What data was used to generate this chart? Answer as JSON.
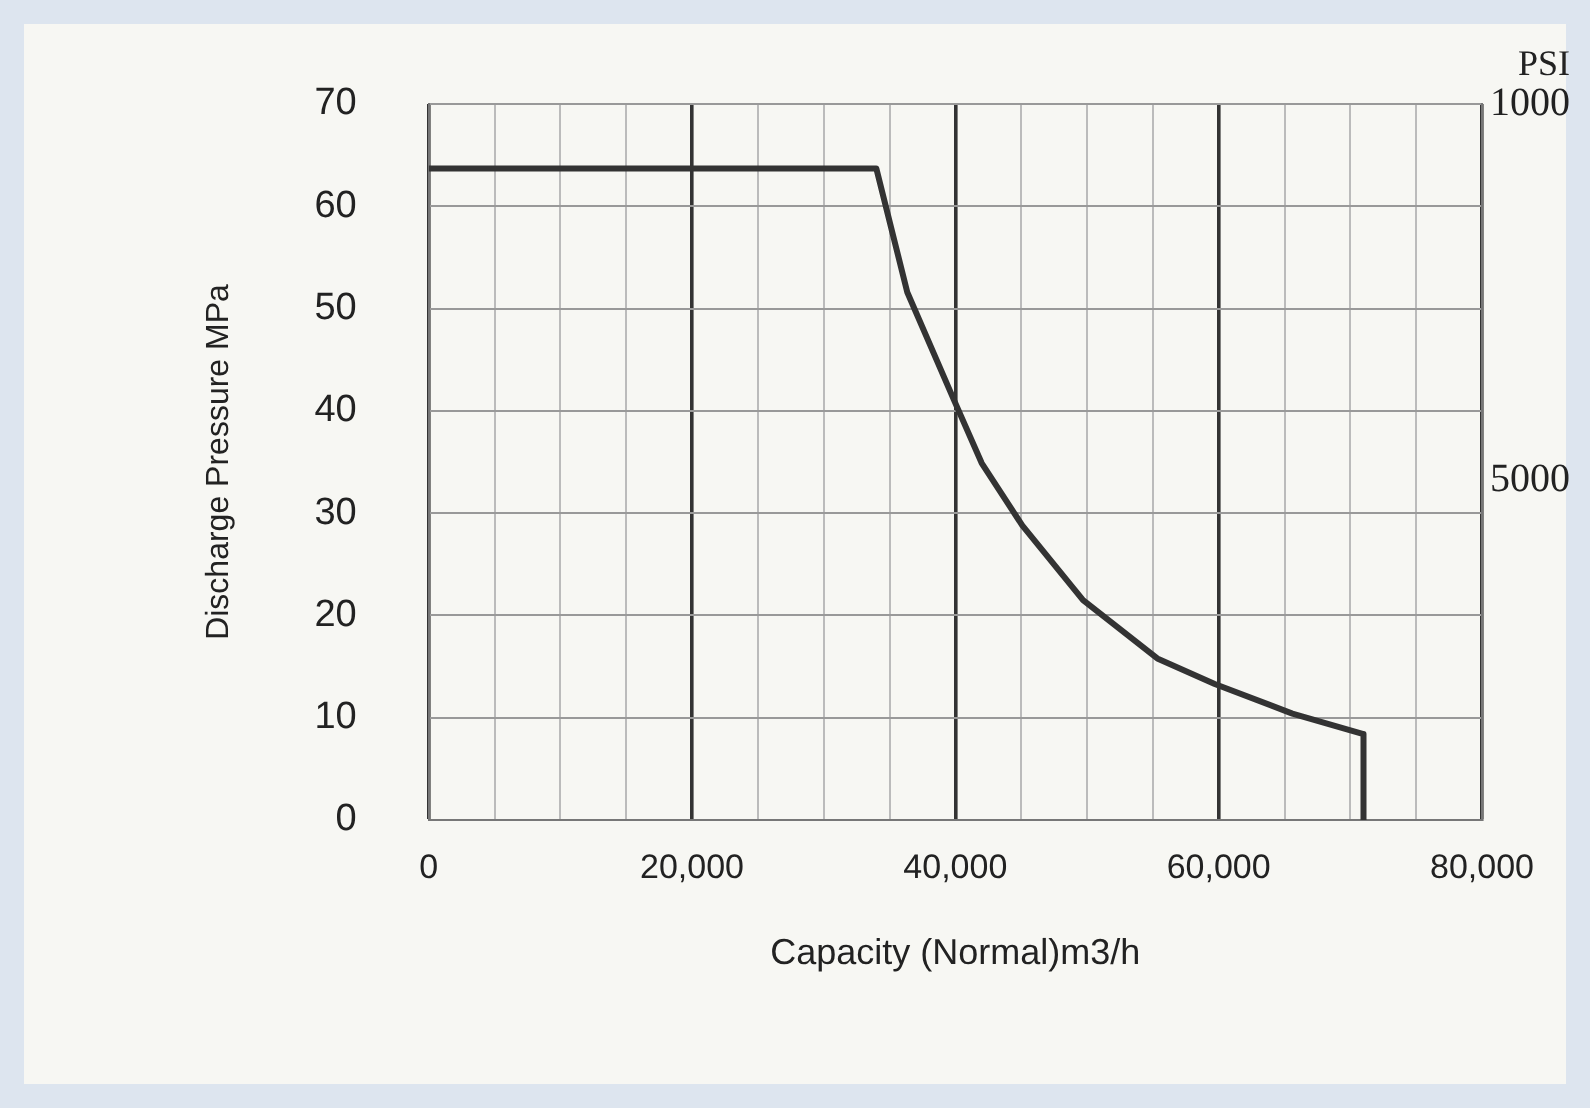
{
  "chart_data": {
    "type": "line",
    "xlabel": "Capacity (Normal)m3/h",
    "ylabel": "Discharge Pressure MPa",
    "y2label": "PSI",
    "xlim": [
      0,
      80000
    ],
    "xticks": [
      0,
      {
        "value": 5000,
        "label": null
      },
      {
        "value": 10000,
        "label": null
      },
      {
        "value": 15000,
        "label": null
      },
      {
        "value": 20000,
        "label": "20,000"
      },
      {
        "value": 25000,
        "label": null
      },
      {
        "value": 30000,
        "label": null
      },
      {
        "value": 35000,
        "label": null
      },
      {
        "value": 40000,
        "label": "40,000"
      },
      {
        "value": 45000,
        "label": null
      },
      {
        "value": 50000,
        "label": null
      },
      {
        "value": 55000,
        "label": null
      },
      {
        "value": 60000,
        "label": "60,000"
      },
      {
        "value": 65000,
        "label": null
      },
      {
        "value": 70000,
        "label": null
      },
      {
        "value": 75000,
        "label": null
      },
      {
        "value": 80000,
        "label": "80,000"
      }
    ],
    "ylim": [
      0,
      70
    ],
    "yticks": [
      0,
      10,
      20,
      30,
      40,
      50,
      60,
      70
    ],
    "y2lim": [
      8600,
      1000
    ],
    "y2ticks": [
      1000,
      5000
    ],
    "grid": true,
    "legend": false,
    "marker": "none",
    "line_style": "solid",
    "series": [
      {
        "color": "#333333",
        "x": [
          0,
          34000,
          36350,
          39950,
          42000,
          45080,
          49700,
          55340,
          59700,
          65600,
          71000,
          71000
        ],
        "values": [
          63.7,
          63.7,
          51.6,
          40.9,
          34.9,
          28.8,
          21.5,
          15.8,
          13.3,
          10.4,
          8.4,
          0
        ]
      }
    ]
  }
}
